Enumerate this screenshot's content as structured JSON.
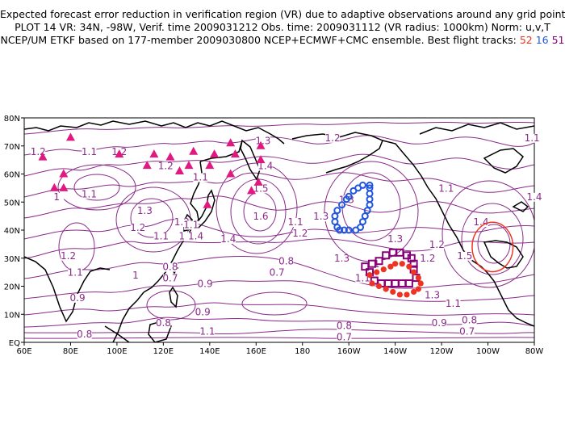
{
  "title": {
    "line1": "Expected forecast error reduction in verification region (VR) due to adaptive observations around any grid point.",
    "line2": "PLOT 14 VR: 34N, -98W, Verif. time 2009031212 Obs. time: 2009031112 (VR radius: 1000km) Norm: u,v,T",
    "line3": "NCEP/UM ETKF based on 177-member 2009030800 NCEP+ECMWF+CMC ensemble. Best flight tracks:",
    "track1": "52",
    "track2": "16",
    "track3": "51"
  },
  "colors": {
    "contour": "#8a2a8a",
    "coast": "#000000",
    "track1": "#ee3322",
    "track2": "#2255dd",
    "track3": "#880077",
    "triangles": "#e0187f",
    "vr_circle": "#ee3322"
  },
  "axes": {
    "lon_labels": [
      "60E",
      "80E",
      "100E",
      "120E",
      "140E",
      "160E",
      "180",
      "160W",
      "140W",
      "120W",
      "100W",
      "80W"
    ],
    "lat_labels": [
      "80N",
      "70N",
      "60N",
      "50N",
      "40N",
      "30N",
      "20N",
      "10N",
      "EQ"
    ]
  },
  "verification_region": {
    "lat": 34,
    "lon": -98,
    "radius_km": 1000
  },
  "contour_labels": [
    {
      "text": "1.2",
      "lon": 66,
      "lat": 67
    },
    {
      "text": "1.1",
      "lon": 88,
      "lat": 67
    },
    {
      "text": "1.2",
      "lon": 101,
      "lat": 67
    },
    {
      "text": "1.2",
      "lon": 121,
      "lat": 62
    },
    {
      "text": "1.1",
      "lon": 88,
      "lat": 52
    },
    {
      "text": "1",
      "lon": 74,
      "lat": 51
    },
    {
      "text": "1.3",
      "lon": 112,
      "lat": 46
    },
    {
      "text": "1.2",
      "lon": 109,
      "lat": 40
    },
    {
      "text": "1.2",
      "lon": 128,
      "lat": 42
    },
    {
      "text": "1.1",
      "lon": 119,
      "lat": 37
    },
    {
      "text": "1.1",
      "lon": 136,
      "lat": 58
    },
    {
      "text": "1.1",
      "lon": 132,
      "lat": 41
    },
    {
      "text": "1.4",
      "lon": 134,
      "lat": 37
    },
    {
      "text": "1",
      "lon": 128,
      "lat": 37
    },
    {
      "text": "1.3",
      "lon": 163,
      "lat": 71
    },
    {
      "text": "1.4",
      "lon": 164,
      "lat": 62
    },
    {
      "text": "1.5",
      "lon": 162,
      "lat": 54
    },
    {
      "text": "1.6",
      "lon": 162,
      "lat": 44
    },
    {
      "text": "1.4",
      "lon": 148,
      "lat": 36
    },
    {
      "text": "1.2",
      "lon": 79,
      "lat": 30
    },
    {
      "text": "1.1",
      "lon": 82,
      "lat": 24
    },
    {
      "text": "0.9",
      "lon": 83,
      "lat": 15
    },
    {
      "text": "0.8",
      "lon": 86,
      "lat": 2
    },
    {
      "text": "1",
      "lon": 108,
      "lat": 23
    },
    {
      "text": "0.8",
      "lon": 123,
      "lat": 26
    },
    {
      "text": "0.7",
      "lon": 123,
      "lat": 22
    },
    {
      "text": "0.9",
      "lon": 138,
      "lat": 20
    },
    {
      "text": "0.9",
      "lon": 137,
      "lat": 10
    },
    {
      "text": "0.8",
      "lon": 120,
      "lat": 6
    },
    {
      "text": "1.1",
      "lon": 139,
      "lat": 3
    },
    {
      "text": "0.8",
      "lon": 173,
      "lat": 28
    },
    {
      "text": "0.7",
      "lon": 169,
      "lat": 24
    },
    {
      "text": "1.2",
      "lon": -167,
      "lat": 72
    },
    {
      "text": "1.1",
      "lon": 177,
      "lat": 42
    },
    {
      "text": "1.2",
      "lon": 179,
      "lat": 38
    },
    {
      "text": "1.3",
      "lon": -172,
      "lat": 44
    },
    {
      "text": "1.3",
      "lon": -161,
      "lat": 50
    },
    {
      "text": "1.3",
      "lon": -163,
      "lat": 29
    },
    {
      "text": "1.3",
      "lon": -140,
      "lat": 36
    },
    {
      "text": "1.2",
      "lon": -122,
      "lat": 34
    },
    {
      "text": "1.2",
      "lon": -126,
      "lat": 29
    },
    {
      "text": "1",
      "lon": -148,
      "lat": 27
    },
    {
      "text": "1.1",
      "lon": -154,
      "lat": 22
    },
    {
      "text": "1.3",
      "lon": -124,
      "lat": 16
    },
    {
      "text": "1.1",
      "lon": -115,
      "lat": 13
    },
    {
      "text": "0.9",
      "lon": -121,
      "lat": 6
    },
    {
      "text": "0.8",
      "lon": -162,
      "lat": 5
    },
    {
      "text": "0.7",
      "lon": -162,
      "lat": 1
    },
    {
      "text": "0.8",
      "lon": -108,
      "lat": 7
    },
    {
      "text": "0.7",
      "lon": -109,
      "lat": 3
    },
    {
      "text": "1.1",
      "lon": -118,
      "lat": 54
    },
    {
      "text": "1.4",
      "lon": -103,
      "lat": 42
    },
    {
      "text": "1.5",
      "lon": -110,
      "lat": 30
    },
    {
      "text": "1.4",
      "lon": -80,
      "lat": 51
    },
    {
      "text": "1.1",
      "lon": -81,
      "lat": 72
    }
  ],
  "triangles": [
    [
      68,
      66
    ],
    [
      80,
      73
    ],
    [
      77,
      60
    ],
    [
      73,
      55
    ],
    [
      77,
      55
    ],
    [
      101,
      67
    ],
    [
      113,
      63
    ],
    [
      116,
      67
    ],
    [
      123,
      66
    ],
    [
      127,
      61
    ],
    [
      131,
      63
    ],
    [
      133,
      68
    ],
    [
      142,
      67
    ],
    [
      140,
      63
    ],
    [
      149,
      71
    ],
    [
      151,
      67
    ],
    [
      149,
      60
    ],
    [
      162,
      70
    ],
    [
      162,
      65
    ],
    [
      161,
      57
    ],
    [
      158,
      54
    ],
    [
      139,
      49
    ]
  ],
  "track_blue": [
    [
      -162,
      40
    ],
    [
      -160,
      40
    ],
    [
      -157,
      40
    ],
    [
      -155,
      41
    ],
    [
      -154,
      43
    ],
    [
      -153,
      45
    ],
    [
      -152,
      47
    ],
    [
      -151,
      49
    ],
    [
      -151,
      51
    ],
    [
      -151,
      53
    ],
    [
      -151,
      55
    ],
    [
      -151,
      56
    ],
    [
      -154,
      56
    ],
    [
      -156,
      55
    ],
    [
      -158,
      54
    ],
    [
      -160,
      52
    ],
    [
      -161,
      51
    ],
    [
      -163,
      49
    ],
    [
      -165,
      47
    ],
    [
      -166,
      45
    ],
    [
      -166,
      43
    ],
    [
      -165,
      41
    ],
    [
      -164,
      40
    ]
  ],
  "track_purple": [
    [
      -153,
      27
    ],
    [
      -150,
      28
    ],
    [
      -147,
      29
    ],
    [
      -144,
      31
    ],
    [
      -141,
      32
    ],
    [
      -138,
      32
    ],
    [
      -135,
      31
    ],
    [
      -133,
      30
    ],
    [
      -132,
      28
    ],
    [
      -132,
      26
    ],
    [
      -131,
      23
    ],
    [
      -134,
      21
    ],
    [
      -137,
      21
    ],
    [
      -140,
      21
    ],
    [
      -143,
      21
    ],
    [
      -146,
      21
    ],
    [
      -149,
      22
    ],
    [
      -151,
      25
    ]
  ],
  "track_red": [
    [
      -151,
      24
    ],
    [
      -148,
      25
    ],
    [
      -145,
      26
    ],
    [
      -142,
      27
    ],
    [
      -140,
      28
    ],
    [
      -137,
      28
    ],
    [
      -134,
      27
    ],
    [
      -132,
      25
    ],
    [
      -130,
      23
    ],
    [
      -129,
      21
    ],
    [
      -130,
      19
    ],
    [
      -132,
      18
    ],
    [
      -135,
      17
    ],
    [
      -138,
      17
    ],
    [
      -141,
      18
    ],
    [
      -144,
      19
    ],
    [
      -147,
      20
    ],
    [
      -150,
      21
    ]
  ]
}
